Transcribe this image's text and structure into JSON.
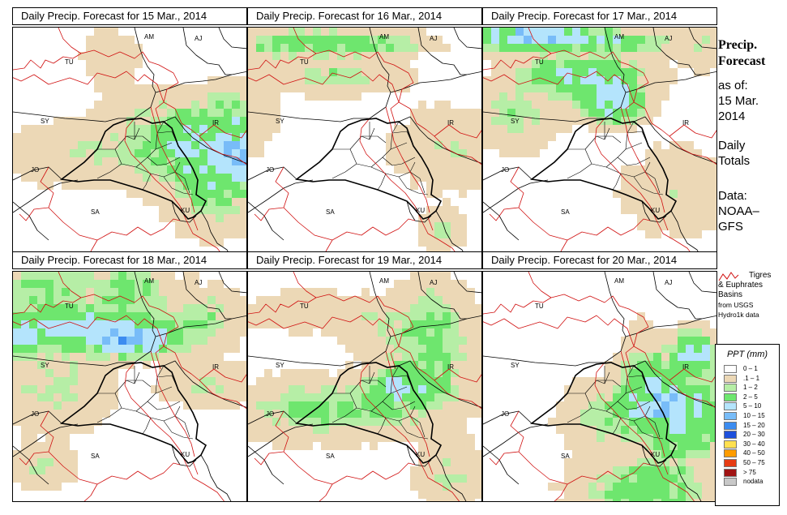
{
  "panels": [
    {
      "title": "Daily Precip. Forecast for  15 Mar., 2014",
      "precip": "p15"
    },
    {
      "title": "Daily Precip. Forecast for  16 Mar., 2014",
      "precip": "p16"
    },
    {
      "title": "Daily Precip. Forecast for  17 Mar., 2014",
      "precip": "p17"
    },
    {
      "title": "Daily Precip. Forecast for  18 Mar., 2014",
      "precip": "p18"
    },
    {
      "title": "Daily Precip. Forecast for  19 Mar., 2014",
      "precip": "p19"
    },
    {
      "title": "Daily Precip. Forecast for  20 Mar., 2014",
      "precip": "p20"
    }
  ],
  "country_labels": [
    "AM",
    "AJ",
    "TU",
    "SY",
    "IR",
    "JO",
    "SA",
    "KU"
  ],
  "sidebar": {
    "title_line1": "Precip.",
    "title_line2": "Forecast",
    "asof_line1": "as of:",
    "asof_line2": "15 Mar.",
    "asof_line3": "2014",
    "totals_line1": "Daily",
    "totals_line2": "Totals",
    "data_line1": "Data:",
    "data_line2": "NOAA–",
    "data_line3": "GFS"
  },
  "basin_key": {
    "line1": "Tigres",
    "line2": "& Euphrates",
    "line3": "Basins",
    "line4": "from USGS",
    "line5": "Hydro1k data",
    "color": "#d01010"
  },
  "legend": {
    "title": "PPT (mm)",
    "entries": [
      {
        "label": "0 – 1",
        "color": "#ffffff"
      },
      {
        "label": ".1 – 1",
        "color": "#ecd8b6"
      },
      {
        "label": "1 – 2",
        "color": "#b6eea6"
      },
      {
        "label": "2 – 5",
        "color": "#6ee66e"
      },
      {
        "label": "5 – 10",
        "color": "#b4e4fc"
      },
      {
        "label": "10 – 15",
        "color": "#78bcf8"
      },
      {
        "label": "15 – 20",
        "color": "#3c8cf0"
      },
      {
        "label": "20 – 30",
        "color": "#1e50dc"
      },
      {
        "label": "30 – 40",
        "color": "#ffe050"
      },
      {
        "label": "40 – 50",
        "color": "#ff9c00"
      },
      {
        "label": "50 – 75",
        "color": "#e63c14"
      },
      {
        "label": "> 75",
        "color": "#a01414"
      },
      {
        "label": "nodata",
        "color": "#c8c8c8"
      }
    ]
  }
}
